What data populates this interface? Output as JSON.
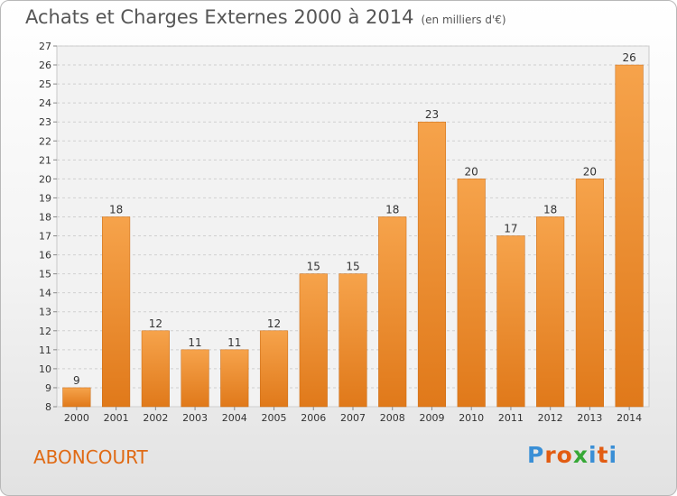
{
  "title": "Achats et Charges Externes 2000 à 2014",
  "unit_note": "(en milliers d'€)",
  "location": "ABONCOURT",
  "logo": {
    "letters": [
      "P",
      "r",
      "o",
      "x",
      "i",
      "t",
      "i"
    ],
    "colors": [
      "#3a8fd6",
      "#e25c12",
      "#e25c12",
      "#36a836",
      "#3a8fd6",
      "#e25c12",
      "#3a8fd6"
    ]
  },
  "colors": {
    "bar_top": "#f6a34b",
    "bar_bottom": "#e0791a",
    "grid": "#cfcfcf",
    "axis_text": "#333333"
  },
  "chart_data": {
    "type": "bar",
    "title": "Achats et Charges Externes 2000 à 2014",
    "subtitle": "(en milliers d'€)",
    "xlabel": "",
    "ylabel": "",
    "categories": [
      "2000",
      "2001",
      "2002",
      "2003",
      "2004",
      "2005",
      "2006",
      "2007",
      "2008",
      "2009",
      "2010",
      "2011",
      "2012",
      "2013",
      "2014"
    ],
    "values": [
      9,
      18,
      12,
      11,
      11,
      12,
      15,
      15,
      18,
      23,
      20,
      17,
      18,
      20,
      26
    ],
    "ylim": [
      8,
      27
    ],
    "yticks": [
      "8",
      "9",
      "10",
      "11",
      "12",
      "13",
      "14",
      "15",
      "16",
      "17",
      "18",
      "19",
      "20",
      "21",
      "22",
      "23",
      "24",
      "25",
      "26",
      "27"
    ],
    "grid": true,
    "data_labels": true
  }
}
